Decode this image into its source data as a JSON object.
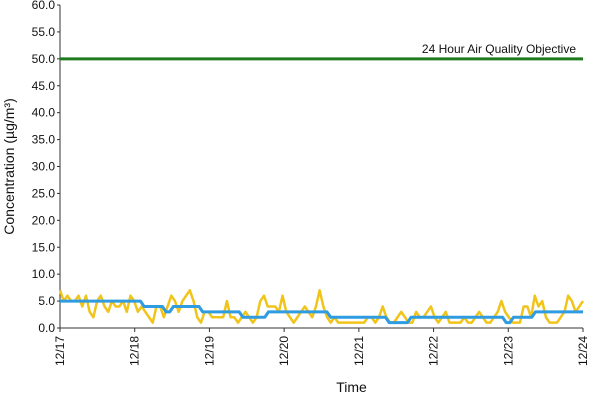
{
  "chart_data": {
    "type": "line",
    "xlabel": "Time",
    "ylabel": "Concentration (µg/m³)",
    "ylim": [
      0,
      60
    ],
    "yticks": [
      "0.0",
      "5.0",
      "10.0",
      "15.0",
      "20.0",
      "25.0",
      "30.0",
      "35.0",
      "40.0",
      "45.0",
      "50.0",
      "55.0",
      "60.0"
    ],
    "xticks": [
      "12/17",
      "12/18",
      "12/19",
      "12/20",
      "12/21",
      "12/22",
      "12/23",
      "12/24"
    ],
    "grid": false,
    "objective": {
      "label": "24 Hour Air Quality Objective",
      "value": 50,
      "color": "#1f7a1f"
    },
    "series": [
      {
        "color": "#f0c419",
        "values": [
          7,
          5,
          6,
          5,
          5,
          6,
          4,
          6,
          3,
          2,
          5,
          6,
          4,
          3,
          5,
          4,
          4,
          5,
          3,
          6,
          5,
          3,
          4,
          3,
          2,
          1,
          4,
          4,
          2,
          4,
          6,
          5,
          3,
          5,
          6,
          7,
          5,
          2,
          1,
          3,
          3,
          2,
          2,
          2,
          2,
          5,
          2,
          2,
          1,
          2,
          3,
          2,
          1,
          2,
          5,
          6,
          4,
          4,
          4,
          3,
          6,
          3,
          2,
          1,
          2,
          3,
          4,
          3,
          2,
          4,
          7,
          4,
          2,
          1,
          2,
          1,
          1,
          1,
          1,
          1,
          1,
          1,
          1,
          2,
          2,
          1,
          2,
          4,
          2,
          1,
          1,
          2,
          3,
          2,
          1,
          1,
          3,
          2,
          2,
          3,
          4,
          2,
          1,
          2,
          3,
          1,
          1,
          1,
          1,
          2,
          1,
          1,
          2,
          3,
          2,
          1,
          1,
          2,
          3,
          5,
          3,
          2,
          1,
          1,
          1,
          4,
          4,
          2,
          6,
          4,
          5,
          2,
          1,
          1,
          1,
          2,
          3,
          6,
          5,
          3,
          4,
          5
        ]
      },
      {
        "color": "#2f9be0",
        "values": [
          5,
          5,
          5,
          5,
          5,
          5,
          5,
          5,
          5,
          5,
          5,
          5,
          5,
          5,
          5,
          5,
          5,
          5,
          5,
          5,
          5,
          5,
          5,
          4,
          4,
          4,
          4,
          4,
          4,
          3,
          3,
          4,
          4,
          4,
          4,
          4,
          4,
          4,
          4,
          3,
          3,
          3,
          3,
          3,
          3,
          3,
          3,
          3,
          3,
          3,
          2,
          2,
          2,
          2,
          2,
          2,
          2,
          3,
          3,
          3,
          3,
          3,
          3,
          3,
          3,
          3,
          3,
          3,
          3,
          3,
          3,
          3,
          3,
          3,
          2,
          2,
          2,
          2,
          2,
          2,
          2,
          2,
          2,
          2,
          2,
          2,
          2,
          2,
          2,
          2,
          1,
          1,
          1,
          1,
          1,
          1,
          2,
          2,
          2,
          2,
          2,
          2,
          2,
          2,
          2,
          2,
          2,
          2,
          2,
          2,
          2,
          2,
          2,
          2,
          2,
          2,
          2,
          2,
          2,
          2,
          2,
          2,
          1,
          1,
          2,
          2,
          2,
          2,
          2,
          2,
          3,
          3,
          3,
          3,
          3,
          3,
          3,
          3,
          3,
          3,
          3,
          3,
          3,
          3
        ]
      }
    ]
  }
}
